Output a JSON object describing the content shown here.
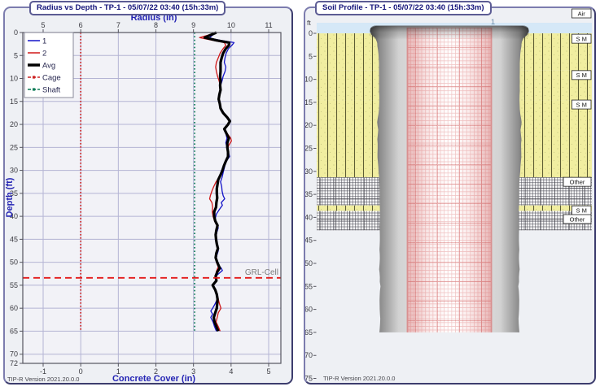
{
  "left_panel": {
    "title": "Radius vs Depth - TP-1 - 05/07/22 03:40 (15h:33m)",
    "version_label": "TIP-R Version 2021.20.0.0"
  },
  "right_panel": {
    "title": "Soil Profile - TP-1 - 05/07/22 03:40 (15h:33m)",
    "version_label": "TIP-R Version 2021.20.0.0",
    "depth_unit_label": "ft",
    "wire_label": "1"
  },
  "colors": {
    "series1": "#1414c8",
    "series2": "#d01818",
    "avg": "#000000",
    "cage_line": "#cc2222",
    "shaft_line": "#0a7a55",
    "grl_line": "#e31b1b",
    "grid": "#b4b4d4",
    "axis_title": "#2424b4",
    "air_band": "#d5e8f7",
    "sand": "#f1eea0"
  },
  "chart_data": [
    {
      "type": "line",
      "title": "Radius vs Depth - TP-1 - 05/07/22 03:40 (15h:33m)",
      "top_axis": {
        "label": "Radius (in)",
        "ticks": [
          5,
          6,
          7,
          8,
          9,
          10,
          11
        ],
        "range": [
          4.46,
          11.33
        ]
      },
      "bottom_axis": {
        "label": "Concrete Cover (in)",
        "ticks": [
          -1,
          0,
          1,
          2,
          3,
          4,
          5
        ]
      },
      "left_axis": {
        "label": "Depth (ft)",
        "ticks": [
          0,
          5,
          10,
          15,
          20,
          25,
          30,
          35,
          40,
          45,
          50,
          55,
          60,
          65,
          70,
          72
        ],
        "range": [
          0,
          72
        ]
      },
      "legend": [
        "1",
        "2",
        "Avg",
        "Cage",
        "Shaft"
      ],
      "reference_lines": [
        {
          "name": "Cage",
          "orientation": "vertical",
          "radius": 6.0,
          "depth_range": [
            0,
            65
          ],
          "style": "dotted"
        },
        {
          "name": "Shaft",
          "orientation": "vertical",
          "radius": 9.03,
          "depth_range": [
            0,
            65
          ],
          "style": "dotted"
        },
        {
          "name": "GRL-Cell",
          "label": "GRL-Cell",
          "orientation": "horizontal",
          "depth": 53.4,
          "style": "dashed"
        }
      ],
      "series": [
        {
          "name": "1",
          "points": [
            [
              0,
              9.62
            ],
            [
              0.6,
              9.5
            ],
            [
              1.2,
              9.42
            ],
            [
              1.7,
              9.72
            ],
            [
              2.2,
              10.08
            ],
            [
              2.8,
              10.02
            ],
            [
              3.5,
              9.93
            ],
            [
              4.5,
              9.87
            ],
            [
              5.5,
              9.84
            ],
            [
              6.5,
              9.82
            ],
            [
              7.5,
              9.86
            ],
            [
              8.5,
              9.84
            ],
            [
              9.5,
              9.79
            ],
            [
              10.5,
              9.76
            ],
            [
              11.5,
              9.72
            ],
            [
              12.5,
              9.73
            ],
            [
              13.5,
              9.7
            ],
            [
              14.5,
              9.68
            ],
            [
              15.5,
              9.71
            ],
            [
              16.5,
              9.74
            ],
            [
              17.5,
              9.8
            ],
            [
              18.5,
              9.9
            ],
            [
              19.3,
              9.97
            ],
            [
              20,
              9.93
            ],
            [
              21,
              9.83
            ],
            [
              22,
              9.86
            ],
            [
              23,
              9.89
            ],
            [
              24,
              9.86
            ],
            [
              25,
              9.89
            ],
            [
              26,
              9.93
            ],
            [
              27,
              9.96
            ],
            [
              27.7,
              9.9
            ],
            [
              28.5,
              9.85
            ],
            [
              29.5,
              9.82
            ],
            [
              30.5,
              9.79
            ],
            [
              31.5,
              9.76
            ],
            [
              32.5,
              9.72
            ],
            [
              33.5,
              9.75
            ],
            [
              34.5,
              9.76
            ],
            [
              35.5,
              9.79
            ],
            [
              36.2,
              9.83
            ],
            [
              37,
              9.74
            ],
            [
              37.6,
              9.77
            ],
            [
              38.5,
              9.69
            ],
            [
              39.5,
              9.61
            ],
            [
              40.5,
              9.58
            ],
            [
              41.5,
              9.61
            ],
            [
              42.5,
              9.66
            ],
            [
              43.5,
              9.62
            ],
            [
              44.5,
              9.6
            ],
            [
              45.5,
              9.61
            ],
            [
              46.5,
              9.64
            ],
            [
              47.5,
              9.66
            ],
            [
              48.5,
              9.62
            ],
            [
              49.5,
              9.6
            ],
            [
              50.5,
              9.65
            ],
            [
              51.3,
              9.74
            ],
            [
              51.8,
              9.77
            ],
            [
              52.4,
              9.68
            ],
            [
              53,
              9.6
            ],
            [
              54,
              9.61
            ],
            [
              55,
              9.5
            ],
            [
              56,
              9.57
            ],
            [
              57,
              9.61
            ],
            [
              58,
              9.63
            ],
            [
              59,
              9.58
            ],
            [
              60,
              9.51
            ],
            [
              60.6,
              9.46
            ],
            [
              61.3,
              9.51
            ],
            [
              62,
              9.46
            ],
            [
              63,
              9.52
            ],
            [
              64,
              9.56
            ],
            [
              65,
              9.61
            ]
          ]
        },
        {
          "name": "2",
          "points": [
            [
              0,
              9.6
            ],
            [
              0.6,
              9.38
            ],
            [
              1.1,
              9.16
            ],
            [
              1.6,
              9.45
            ],
            [
              2.2,
              9.82
            ],
            [
              2.8,
              9.86
            ],
            [
              3.5,
              9.79
            ],
            [
              4.5,
              9.71
            ],
            [
              5.5,
              9.66
            ],
            [
              6.5,
              9.61
            ],
            [
              7.5,
              9.59
            ],
            [
              8.5,
              9.61
            ],
            [
              9.5,
              9.64
            ],
            [
              10.5,
              9.68
            ],
            [
              11.5,
              9.71
            ],
            [
              12.5,
              9.72
            ],
            [
              13.5,
              9.68
            ],
            [
              14.5,
              9.66
            ],
            [
              15.5,
              9.69
            ],
            [
              16.5,
              9.71
            ],
            [
              17.5,
              9.78
            ],
            [
              18.5,
              9.89
            ],
            [
              19.3,
              9.97
            ],
            [
              20,
              9.91
            ],
            [
              21,
              9.81
            ],
            [
              22,
              9.9
            ],
            [
              23,
              9.99
            ],
            [
              23.6,
              10.01
            ],
            [
              24.5,
              9.94
            ],
            [
              25.5,
              9.9
            ],
            [
              26.5,
              9.92
            ],
            [
              27.5,
              9.89
            ],
            [
              28.5,
              9.84
            ],
            [
              29.5,
              9.79
            ],
            [
              30.5,
              9.74
            ],
            [
              31.5,
              9.68
            ],
            [
              32.5,
              9.6
            ],
            [
              33.5,
              9.54
            ],
            [
              34.5,
              9.49
            ],
            [
              35.5,
              9.45
            ],
            [
              36.2,
              9.43
            ],
            [
              37,
              9.49
            ],
            [
              38,
              9.51
            ],
            [
              39,
              9.5
            ],
            [
              40,
              9.52
            ],
            [
              41,
              9.56
            ],
            [
              42,
              9.62
            ],
            [
              43,
              9.6
            ],
            [
              44,
              9.58
            ],
            [
              45,
              9.59
            ],
            [
              46,
              9.61
            ],
            [
              47,
              9.65
            ],
            [
              48,
              9.61
            ],
            [
              49,
              9.59
            ],
            [
              50,
              9.61
            ],
            [
              51,
              9.66
            ],
            [
              52,
              9.61
            ],
            [
              53,
              9.59
            ],
            [
              54,
              9.61
            ],
            [
              55,
              9.52
            ],
            [
              56,
              9.59
            ],
            [
              57,
              9.63
            ],
            [
              58,
              9.66
            ],
            [
              59,
              9.69
            ],
            [
              60,
              9.73
            ],
            [
              61,
              9.66
            ],
            [
              62,
              9.63
            ],
            [
              63,
              9.6
            ],
            [
              64,
              9.66
            ],
            [
              65,
              9.71
            ]
          ]
        },
        {
          "name": "Avg",
          "points": [
            [
              0,
              9.61
            ],
            [
              0.6,
              9.44
            ],
            [
              1.1,
              9.3
            ],
            [
              1.7,
              9.6
            ],
            [
              2.2,
              9.95
            ],
            [
              2.8,
              9.94
            ],
            [
              3.5,
              9.86
            ],
            [
              4.5,
              9.79
            ],
            [
              5.5,
              9.75
            ],
            [
              6.5,
              9.72
            ],
            [
              7.5,
              9.72
            ],
            [
              8.5,
              9.72
            ],
            [
              9.5,
              9.71
            ],
            [
              10.5,
              9.72
            ],
            [
              11.5,
              9.71
            ],
            [
              12.5,
              9.72
            ],
            [
              13.5,
              9.69
            ],
            [
              14.5,
              9.67
            ],
            [
              15.5,
              9.7
            ],
            [
              16.5,
              9.72
            ],
            [
              17.5,
              9.79
            ],
            [
              18.5,
              9.9
            ],
            [
              19.3,
              9.97
            ],
            [
              20,
              9.92
            ],
            [
              21,
              9.82
            ],
            [
              22,
              9.88
            ],
            [
              23,
              9.94
            ],
            [
              24,
              9.9
            ],
            [
              25,
              9.9
            ],
            [
              26,
              9.92
            ],
            [
              27,
              9.92
            ],
            [
              28,
              9.86
            ],
            [
              29,
              9.81
            ],
            [
              30,
              9.77
            ],
            [
              31,
              9.72
            ],
            [
              32,
              9.66
            ],
            [
              33,
              9.64
            ],
            [
              34,
              9.62
            ],
            [
              35,
              9.62
            ],
            [
              36,
              9.63
            ],
            [
              37,
              9.61
            ],
            [
              38,
              9.6
            ],
            [
              39,
              9.55
            ],
            [
              40,
              9.55
            ],
            [
              41,
              9.58
            ],
            [
              42,
              9.64
            ],
            [
              43,
              9.61
            ],
            [
              44,
              9.59
            ],
            [
              45,
              9.6
            ],
            [
              46,
              9.62
            ],
            [
              47,
              9.65
            ],
            [
              48,
              9.61
            ],
            [
              49,
              9.59
            ],
            [
              50,
              9.63
            ],
            [
              51.3,
              9.7
            ],
            [
              52,
              9.64
            ],
            [
              53,
              9.59
            ],
            [
              54,
              9.61
            ],
            [
              55,
              9.51
            ],
            [
              56,
              9.58
            ],
            [
              57,
              9.62
            ],
            [
              58,
              9.64
            ],
            [
              59,
              9.63
            ],
            [
              60,
              9.62
            ],
            [
              61,
              9.58
            ],
            [
              62,
              9.54
            ],
            [
              63,
              9.56
            ],
            [
              64,
              9.61
            ],
            [
              65,
              9.66
            ]
          ]
        }
      ]
    },
    {
      "type": "soil-profile",
      "title": "Soil Profile - TP-1 - 05/07/22 03:40 (15h:33m)",
      "depth_unit": "ft",
      "depth_ticks": [
        0,
        5,
        10,
        15,
        20,
        25,
        30,
        35,
        40,
        45,
        50,
        55,
        60,
        65,
        70,
        75
      ],
      "layers": [
        {
          "label": "Air",
          "from": -2.3,
          "to": 0,
          "material": "air"
        },
        {
          "label": "S M",
          "from": 0,
          "to": 8.1,
          "material": "sand"
        },
        {
          "label": "S M",
          "from": 8.1,
          "to": 14.5,
          "material": "sand"
        },
        {
          "label": "S M",
          "from": 14.5,
          "to": 31.3,
          "material": "sand"
        },
        {
          "label": "Other",
          "from": 31.3,
          "to": 37.4,
          "material": "crosshatch"
        },
        {
          "label": "S M",
          "from": 37.4,
          "to": 38.6,
          "material": "sand"
        },
        {
          "label": "Other",
          "from": 38.6,
          "to": 42.8,
          "material": "crosshatch"
        }
      ],
      "layer_labels": [
        {
          "text": "Air",
          "depth": -5.3
        },
        {
          "text": "S M",
          "depth": 0.2
        },
        {
          "text": "S M",
          "depth": 8.1
        },
        {
          "text": "S M",
          "depth": 14.5
        },
        {
          "text": "Other",
          "depth": 31.3
        },
        {
          "text": "S M",
          "depth": 37.5
        },
        {
          "text": "Other",
          "depth": 39.4
        }
      ],
      "shaft": {
        "top": -1.6,
        "bottom": 65,
        "wire_label": "1",
        "cage_half_width_in": 6
      }
    }
  ]
}
